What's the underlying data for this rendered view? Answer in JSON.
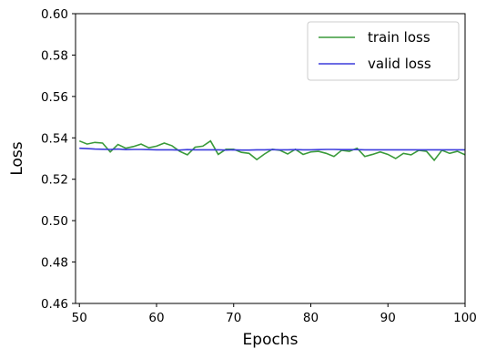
{
  "chart_data": {
    "type": "line",
    "title": "",
    "xlabel": "Epochs",
    "ylabel": "Loss",
    "xlim": [
      49.5,
      100
    ],
    "ylim": [
      0.46,
      0.6
    ],
    "x_ticks": [
      50,
      60,
      70,
      80,
      90,
      100
    ],
    "y_ticks": [
      0.46,
      0.48,
      0.5,
      0.52,
      0.54,
      0.56,
      0.58,
      0.6
    ],
    "grid": false,
    "legend_position": "top-right",
    "x": [
      50,
      51,
      52,
      53,
      54,
      55,
      56,
      57,
      58,
      59,
      60,
      61,
      62,
      63,
      64,
      65,
      66,
      67,
      68,
      69,
      70,
      71,
      72,
      73,
      74,
      75,
      76,
      77,
      78,
      79,
      80,
      81,
      82,
      83,
      84,
      85,
      86,
      87,
      88,
      89,
      90,
      91,
      92,
      93,
      94,
      95,
      96,
      97,
      98,
      99,
      100
    ],
    "series": [
      {
        "name": "train loss",
        "color": "#3a9a3a",
        "values": [
          0.5385,
          0.537,
          0.5378,
          0.5375,
          0.5332,
          0.5368,
          0.535,
          0.5358,
          0.537,
          0.5352,
          0.536,
          0.5375,
          0.5362,
          0.5335,
          0.5318,
          0.5355,
          0.536,
          0.5385,
          0.532,
          0.5345,
          0.5345,
          0.533,
          0.5325,
          0.5295,
          0.5322,
          0.5345,
          0.534,
          0.5322,
          0.5345,
          0.532,
          0.5332,
          0.5335,
          0.5325,
          0.531,
          0.534,
          0.5335,
          0.535,
          0.531,
          0.532,
          0.5332,
          0.532,
          0.53,
          0.5325,
          0.5318,
          0.534,
          0.5335,
          0.5292,
          0.534,
          0.5325,
          0.5335,
          0.5318
        ]
      },
      {
        "name": "valid loss",
        "color": "#3b3bdc",
        "values": [
          0.535,
          0.5348,
          0.5346,
          0.5345,
          0.5344,
          0.5346,
          0.5343,
          0.5344,
          0.5344,
          0.5343,
          0.5342,
          0.5342,
          0.5342,
          0.5341,
          0.5343,
          0.5342,
          0.5342,
          0.5342,
          0.5342,
          0.5341,
          0.5342,
          0.5341,
          0.5341,
          0.5342,
          0.5342,
          0.5343,
          0.5342,
          0.5342,
          0.5343,
          0.5342,
          0.5342,
          0.5343,
          0.5344,
          0.5344,
          0.5343,
          0.5343,
          0.5343,
          0.5342,
          0.5342,
          0.5342,
          0.5342,
          0.5342,
          0.5342,
          0.5342,
          0.5342,
          0.5342,
          0.5342,
          0.5342,
          0.5342,
          0.5342,
          0.5342
        ]
      }
    ]
  }
}
